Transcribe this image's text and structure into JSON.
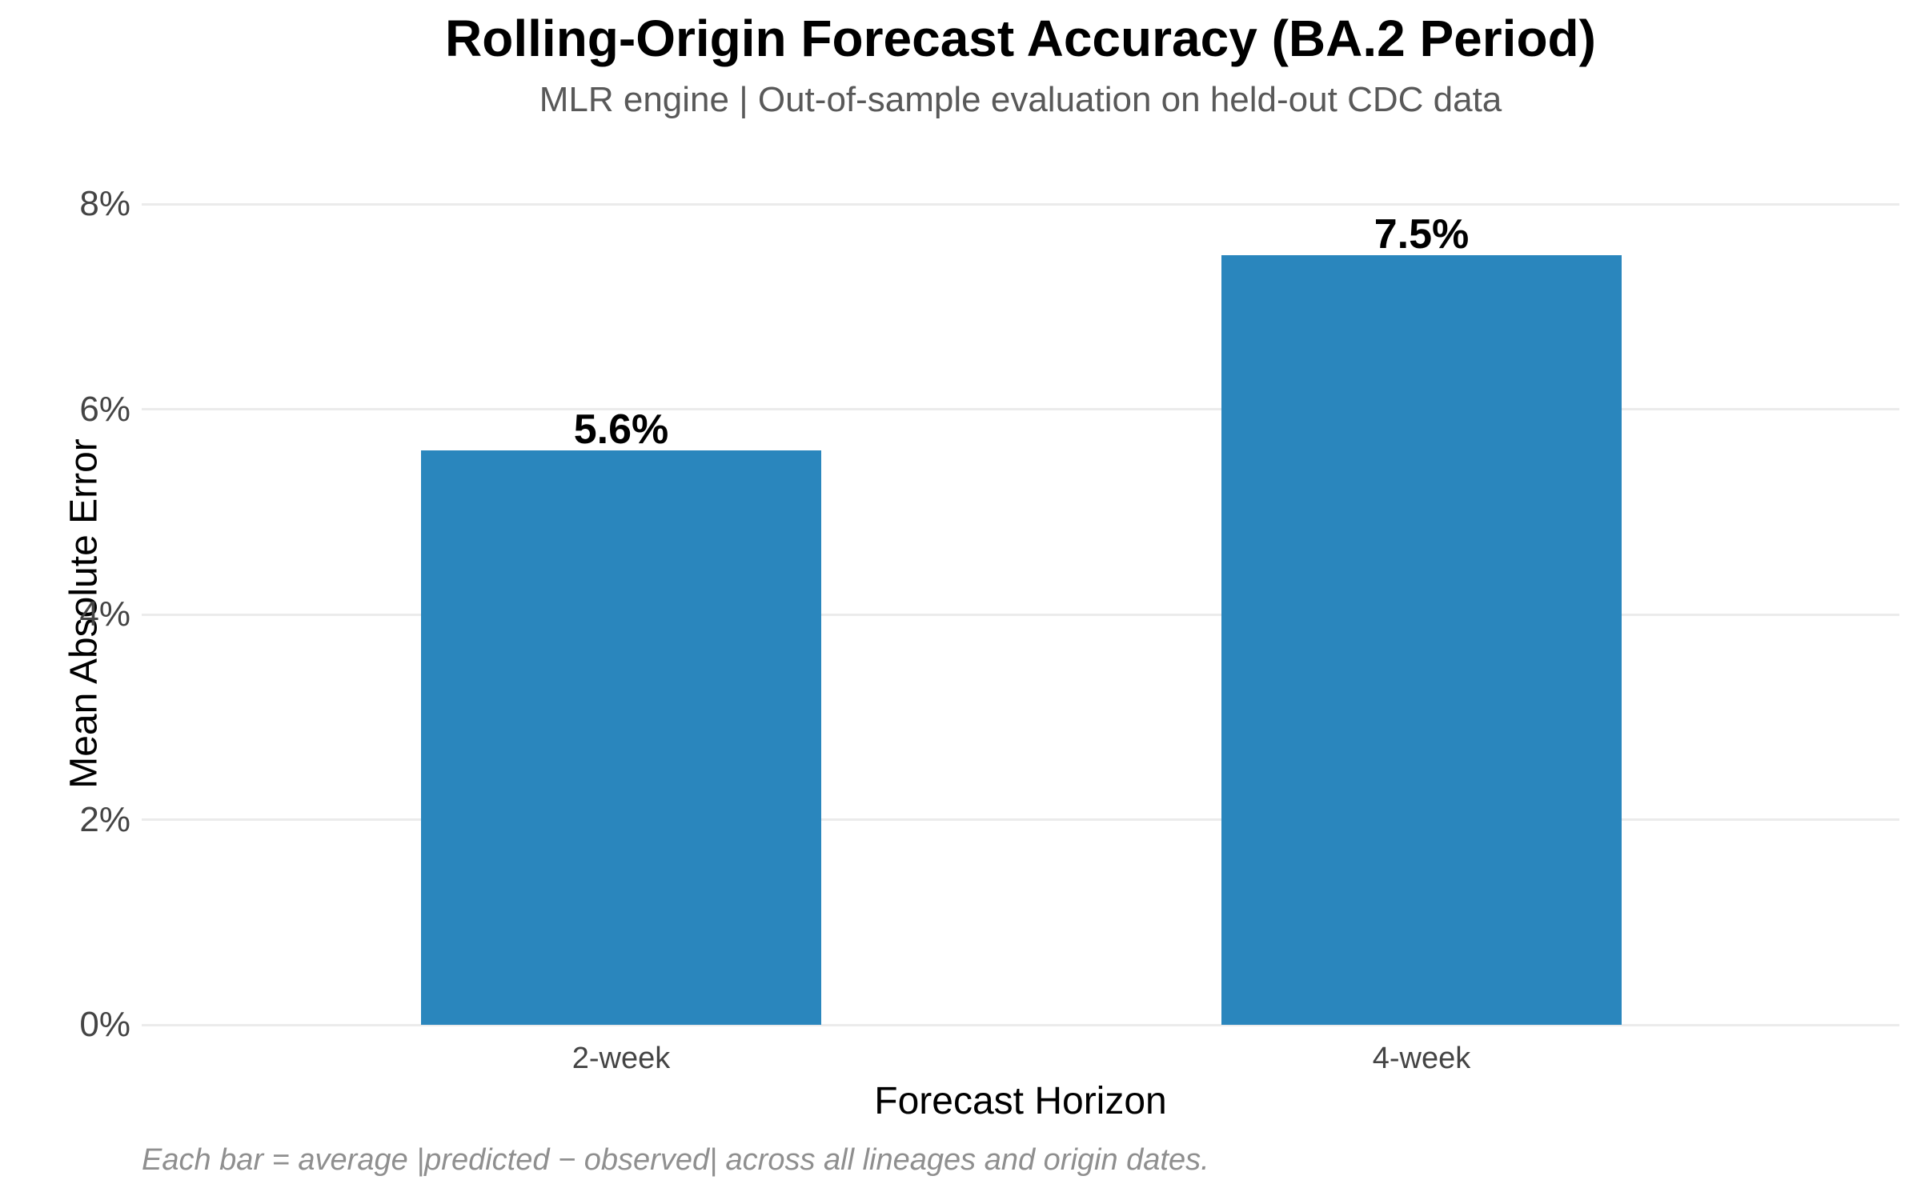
{
  "chart_data": {
    "type": "bar",
    "title": "Rolling-Origin Forecast Accuracy (BA.2 Period)",
    "subtitle": "MLR engine | Out-of-sample evaluation on held-out CDC data",
    "categories": [
      "2-week",
      "4-week"
    ],
    "values": [
      5.6,
      7.5
    ],
    "value_labels": [
      "5.6%",
      "7.5%"
    ],
    "xlabel": "Forecast Horizon",
    "ylabel": "Mean Absolute Error",
    "ylim": [
      0,
      8
    ],
    "y_tick_values": [
      0,
      2,
      4,
      6,
      8
    ],
    "y_ticks": [
      "0%",
      "2%",
      "4%",
      "6%",
      "8%"
    ],
    "grid": "horizontal gridlines only, no axis spines",
    "legend": "none",
    "footnote": "Each bar = average |predicted − observed| across all lineages and origin dates."
  },
  "colors": {
    "bar": "#2a86bd",
    "gridline": "#ebebeb",
    "tick_text": "#444444",
    "subtitle_text": "#595959",
    "footnote_text": "#8f8f8f",
    "title_text": "#000000",
    "background": "#ffffff"
  }
}
